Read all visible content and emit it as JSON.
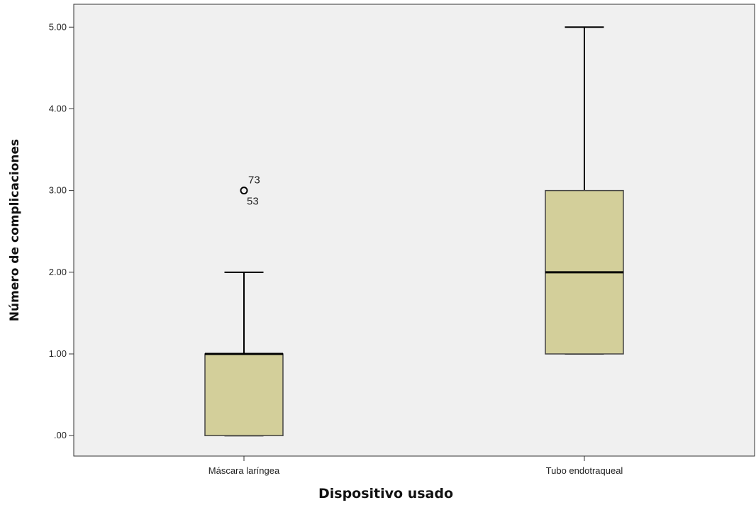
{
  "chart_data": {
    "type": "boxplot",
    "title": "",
    "xlabel": "Dispositivo usado",
    "ylabel": "Número de complicaciones",
    "ylim": [
      -0.25,
      5.28
    ],
    "yticks": [
      {
        "value": 0,
        "label": ".00"
      },
      {
        "value": 1,
        "label": "1.00"
      },
      {
        "value": 2,
        "label": "2.00"
      },
      {
        "value": 3,
        "label": "3.00"
      },
      {
        "value": 4,
        "label": "4.00"
      },
      {
        "value": 5,
        "label": "5.00"
      }
    ],
    "grid": false,
    "colors": {
      "box_fill": "#d3cf9a",
      "plot_bg": "#f0f0f0"
    },
    "categories": [
      "Máscara laríngea",
      "Tubo endotraqueal"
    ],
    "boxes": [
      {
        "category": "Máscara laríngea",
        "whisker_low": 0,
        "q1": 0,
        "median": 1,
        "q3": 1,
        "whisker_high": 2,
        "outliers": [
          {
            "value": 3,
            "labels": [
              "73",
              "53"
            ]
          }
        ]
      },
      {
        "category": "Tubo endotraqueal",
        "whisker_low": 1,
        "q1": 1,
        "median": 2,
        "q3": 3,
        "whisker_high": 5,
        "outliers": []
      }
    ]
  }
}
